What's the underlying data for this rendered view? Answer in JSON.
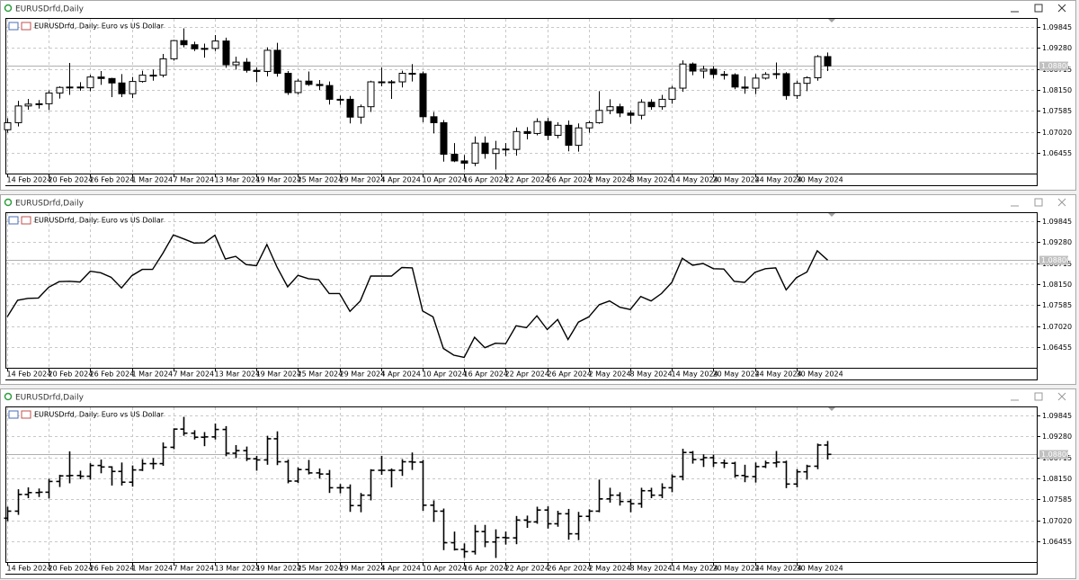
{
  "chart_data": {
    "x": [
      "14 Feb 2024",
      null,
      null,
      null,
      "20 Feb 2024",
      null,
      null,
      null,
      "26 Feb 2024",
      null,
      null,
      null,
      "1 Mar 2024",
      null,
      null,
      null,
      "7 Mar 2024",
      null,
      null,
      null,
      "13 Mar 2024",
      null,
      null,
      null,
      "19 Mar 2024",
      null,
      null,
      null,
      "25 Mar 2024",
      null,
      null,
      null,
      "29 Mar 2024",
      null,
      null,
      null,
      "4 Apr 2024",
      null,
      null,
      null,
      "10 Apr 2024",
      null,
      null,
      null,
      "16 Apr 2024",
      null,
      null,
      null,
      "22 Apr 2024",
      null,
      null,
      null,
      "26 Apr 2024",
      null,
      null,
      null,
      "2 May 2024",
      null,
      null,
      null,
      "8 May 2024",
      null,
      null,
      null,
      "14 May 2024",
      null,
      null,
      null,
      "20 May 2024",
      null,
      null,
      null,
      "24 May 2024",
      null,
      null,
      null,
      "30 May 2024",
      null,
      null,
      null
    ],
    "open": [
      1.0708,
      1.0727,
      1.0772,
      1.0777,
      1.0778,
      1.0807,
      1.0822,
      1.0823,
      1.0821,
      1.085,
      1.0846,
      1.0834,
      1.0805,
      1.0838,
      1.0855,
      1.0855,
      1.0899,
      1.0948,
      1.0937,
      1.0926,
      1.0927,
      1.0947,
      1.0883,
      1.089,
      1.0868,
      1.0865,
      1.0922,
      1.086,
      1.0808,
      1.0839,
      1.083,
      1.0827,
      1.079,
      1.079,
      1.0742,
      1.077,
      1.0837,
      1.0837,
      1.0837,
      1.086,
      1.0859,
      1.0743,
      1.0727,
      1.0642,
      1.0624,
      1.0618,
      1.0672,
      1.0644,
      1.0656,
      1.0655,
      1.0703,
      1.0698,
      1.073,
      1.0693,
      1.072,
      1.0666,
      1.0713,
      1.0727,
      1.076,
      1.077,
      1.0753,
      1.0747,
      1.0782,
      1.077,
      1.079,
      1.082,
      1.0885,
      1.0866,
      1.0871,
      1.0857,
      1.0856,
      1.0823,
      1.082,
      1.0847,
      1.0857,
      1.0859,
      1.08,
      1.0833,
      1.0848,
      1.0905
    ],
    "high": [
      1.0739,
      1.0786,
      1.0791,
      1.0788,
      1.0814,
      1.0825,
      1.0888,
      1.0836,
      1.0856,
      1.0866,
      1.0848,
      1.0858,
      1.085,
      1.0867,
      1.087,
      1.0912,
      1.095,
      1.0981,
      1.0945,
      1.094,
      1.0963,
      1.0956,
      1.0905,
      1.0901,
      1.0876,
      1.093,
      1.0942,
      1.0866,
      1.0845,
      1.0865,
      1.0842,
      1.0838,
      1.08,
      1.0799,
      1.0776,
      1.084,
      1.0876,
      1.0842,
      1.0867,
      1.0885,
      1.0865,
      1.0756,
      1.0734,
      1.0672,
      1.064,
      1.069,
      1.069,
      1.0678,
      1.0672,
      1.0714,
      1.0715,
      1.0739,
      1.074,
      1.0728,
      1.0733,
      1.0725,
      1.0732,
      1.0812,
      1.079,
      1.0778,
      1.076,
      1.079,
      1.079,
      1.0802,
      1.0826,
      1.0895,
      1.0889,
      1.088,
      1.0879,
      1.0866,
      1.086,
      1.0852,
      1.0858,
      1.0863,
      1.0889,
      1.0863,
      1.084,
      1.0852,
      1.0909,
      1.0916
    ],
    "low": [
      1.07,
      1.0717,
      1.0762,
      1.0765,
      1.0761,
      1.0792,
      1.0802,
      1.0813,
      1.0812,
      1.0829,
      1.0796,
      1.0796,
      1.0793,
      1.0835,
      1.084,
      1.0849,
      1.0894,
      1.093,
      1.092,
      1.0902,
      1.092,
      1.0875,
      1.087,
      1.0862,
      1.0836,
      1.0852,
      1.0851,
      1.0802,
      1.0803,
      1.0826,
      1.0815,
      1.0776,
      1.0775,
      1.0725,
      1.0724,
      1.0756,
      1.0825,
      1.0791,
      1.0822,
      1.0838,
      1.0728,
      1.0698,
      1.0622,
      1.0621,
      1.0601,
      1.061,
      1.063,
      1.0601,
      1.0637,
      1.0638,
      1.0682,
      1.0693,
      1.068,
      1.0685,
      1.065,
      1.0649,
      1.07,
      1.0724,
      1.075,
      1.0742,
      1.0724,
      1.0736,
      1.0762,
      1.0762,
      1.0778,
      1.081,
      1.0855,
      1.0846,
      1.0846,
      1.0843,
      1.0817,
      1.0805,
      1.0804,
      1.0843,
      1.0845,
      1.0789,
      1.0791,
      1.0812,
      1.084,
      1.0866
    ],
    "close": [
      1.0727,
      1.0772,
      1.0777,
      1.0778,
      1.0807,
      1.0822,
      1.0823,
      1.0821,
      1.085,
      1.0846,
      1.0834,
      1.0805,
      1.0838,
      1.0855,
      1.0855,
      1.0899,
      1.0948,
      1.0937,
      1.0926,
      1.0927,
      1.0947,
      1.0883,
      1.089,
      1.0868,
      1.0865,
      1.0922,
      1.086,
      1.0808,
      1.0839,
      1.083,
      1.0827,
      1.079,
      1.079,
      1.0742,
      1.077,
      1.0837,
      1.0837,
      1.0837,
      1.086,
      1.0859,
      1.0743,
      1.0727,
      1.0642,
      1.0624,
      1.0618,
      1.0672,
      1.0644,
      1.0656,
      1.0655,
      1.0703,
      1.0698,
      1.073,
      1.0693,
      1.072,
      1.0666,
      1.0713,
      1.0727,
      1.076,
      1.077,
      1.0753,
      1.0747,
      1.0782,
      1.077,
      1.079,
      1.082,
      1.0885,
      1.0866,
      1.0871,
      1.0857,
      1.0856,
      1.0823,
      1.082,
      1.0847,
      1.0857,
      1.0859,
      1.08,
      1.0833,
      1.0848,
      1.0905,
      1.088
    ],
    "ylim": [
      1.059,
      1.1009
    ],
    "yticks": [
      1.09845,
      {
        "value": 1.0928,
        "label": "1.09280"
      },
      1.08715,
      {
        "value": 1.0815,
        "label": "1.08150"
      },
      1.07585,
      {
        "value": 1.0702,
        "label": "1.07020"
      },
      1.06455
    ],
    "last_price": {
      "value": 1.088,
      "label": "1.08800"
    },
    "grid": true,
    "panels": [
      {
        "type": "candlestick",
        "window_title": "EURUSDrfd,Daily",
        "title": "EURUSDrfd, Daily:  Euro vs US Dollar"
      },
      {
        "type": "line",
        "window_title": "EURUSDrfd,Daily",
        "title": "EURUSDrfd, Daily:  Euro vs US Dollar"
      },
      {
        "type": "ohlc",
        "window_title": "EURUSDrfd,Daily",
        "title": "EURUSDrfd, Daily:  Euro vs US Dollar"
      }
    ]
  }
}
